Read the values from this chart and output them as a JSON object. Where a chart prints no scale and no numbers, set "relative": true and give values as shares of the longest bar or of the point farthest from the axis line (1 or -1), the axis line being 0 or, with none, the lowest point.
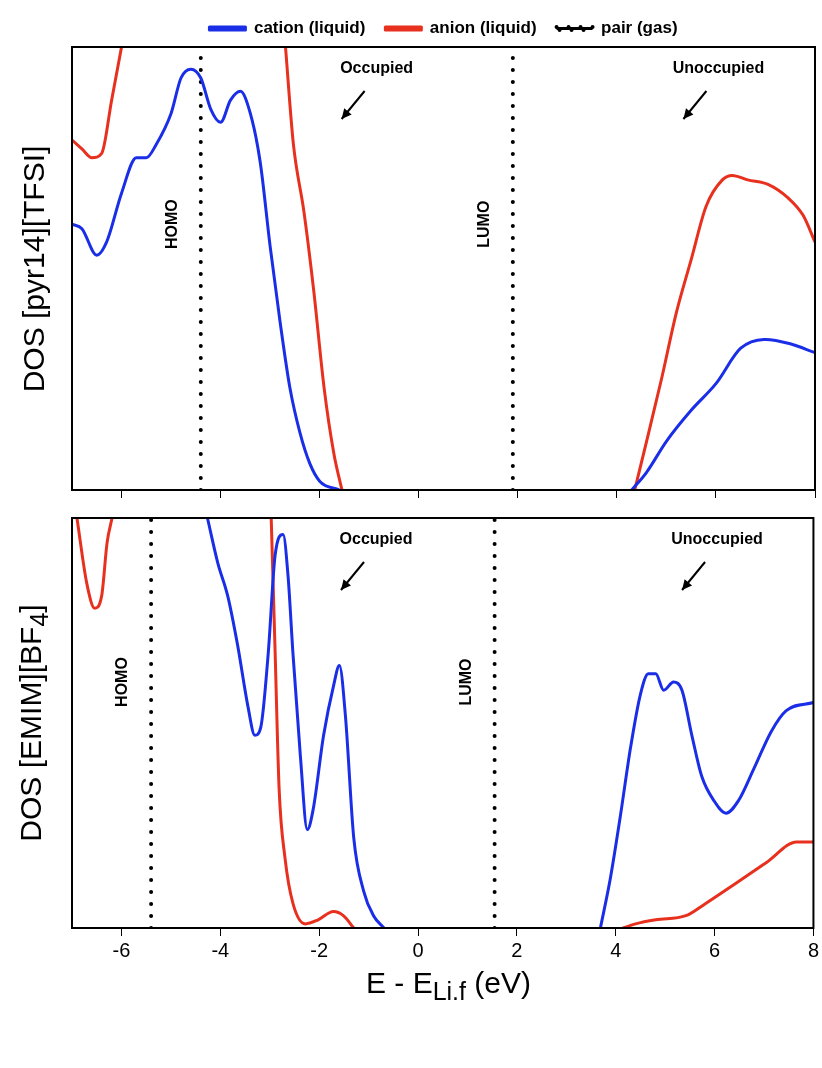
{
  "chart_data": [
    {
      "type": "line",
      "relative": true,
      "ylabel": "DOS [pyr14][TFSI]",
      "xlim": [
        -7,
        8
      ],
      "xticks": [
        -6,
        -4,
        -2,
        0,
        2,
        4,
        6,
        8
      ],
      "tick_labels": false,
      "legend": "top",
      "marker": "none",
      "series": [
        {
          "name": "cation (liquid)",
          "color": "#1a2ee8",
          "x": [
            -7,
            -6.8,
            -6.5,
            -6.3,
            -6,
            -5.7,
            -5.5,
            -5.3,
            -5,
            -4.8,
            -4.6,
            -4.4,
            -4.2,
            -4,
            -3.8,
            -3.6,
            -3.4,
            -3.2,
            -3,
            -2.8,
            -2.6,
            -2.4,
            -2.2,
            -2,
            -1.6,
            null,
            4.3,
            4.6,
            5,
            5.5,
            6,
            6.5,
            7,
            7.5,
            8
          ],
          "values": [
            0.6,
            0.59,
            0.53,
            0.56,
            0.67,
            0.75,
            0.75,
            0.78,
            0.85,
            0.93,
            0.95,
            0.93,
            0.86,
            0.83,
            0.88,
            0.9,
            0.85,
            0.74,
            0.55,
            0.38,
            0.23,
            0.13,
            0.06,
            0.02,
            0,
            null,
            0,
            0.04,
            0.11,
            0.18,
            0.24,
            0.32,
            0.34,
            0.33,
            0.31
          ]
        },
        {
          "name": "anion (liquid)",
          "color": "#e8301e",
          "x": [
            -7,
            -6.8,
            -6.6,
            -6.4,
            -6.2,
            -6,
            null,
            -2.69,
            -2.53,
            -2.32,
            -2.12,
            -1.91,
            -1.71,
            -1.55,
            null,
            4.36,
            4.6,
            4.9,
            5.2,
            5.5,
            5.8,
            6.13,
            6.33,
            6.64,
            7.05,
            7.45,
            7.76,
            8
          ],
          "values": [
            0.79,
            0.77,
            0.75,
            0.76,
            0.88,
            1,
            null,
            1,
            0.78,
            0.63,
            0.45,
            0.23,
            0.08,
            0,
            null,
            0,
            0.11,
            0.25,
            0.4,
            0.52,
            0.64,
            0.7,
            0.71,
            0.7,
            0.69,
            0.66,
            0.62,
            0.56
          ]
        },
        {
          "name": "pair (gas)",
          "color": "#000000",
          "line_style": "dotted",
          "x": [
            -4.4,
            -4.4,
            null,
            1.9,
            1.9
          ],
          "values": [
            0,
            1,
            null,
            0,
            1
          ]
        }
      ],
      "annotations": [
        "HOMO",
        "LUMO",
        "Occupied",
        "Unoccupied"
      ]
    },
    {
      "type": "line",
      "relative": true,
      "ylabel": "DOS [EMIM][BF$_{4}$]",
      "xlabel": "E - E$_{Li.f}$ (eV)",
      "xlim": [
        -7,
        8
      ],
      "xticks": [
        -6,
        -4,
        -2,
        0,
        2,
        4,
        6,
        8
      ],
      "tick_labels": "x",
      "marker": "none",
      "series": [
        {
          "color": "#1a2ee8",
          "x": [
            -4.26,
            -4.05,
            -3.85,
            -3.65,
            -3.44,
            -3.3,
            -3.18,
            -3.03,
            -2.89,
            -2.73,
            -2.63,
            -2.53,
            -2.38,
            -2.24,
            -2.12,
            -1.91,
            -1.71,
            -1.59,
            -1.47,
            -1.3,
            -1.1,
            -0.9,
            -0.69,
            null,
            3.69,
            3.89,
            4.09,
            4.3,
            4.5,
            4.66,
            4.81,
            4.97,
            5.17,
            5.34,
            5.54,
            5.74,
            5.99,
            6.23,
            6.48,
            6.8,
            7.15,
            7.45,
            8
          ],
          "values": [
            1,
            0.89,
            0.81,
            0.69,
            0.54,
            0.47,
            0.49,
            0.67,
            0.91,
            0.96,
            0.86,
            0.67,
            0.42,
            0.24,
            0.29,
            0.47,
            0.59,
            0.64,
            0.52,
            0.22,
            0.09,
            0.03,
            0,
            null,
            0,
            0.12,
            0.27,
            0.44,
            0.57,
            0.62,
            0.62,
            0.58,
            0.6,
            0.58,
            0.47,
            0.37,
            0.31,
            0.28,
            0.31,
            0.39,
            0.48,
            0.53,
            0.55
          ]
        },
        {
          "color": "#e8301e",
          "x": [
            -6.9,
            -6.7,
            -6.54,
            -6.4,
            -6.29,
            -6.19,
            null,
            -2.97,
            -2.89,
            -2.81,
            -2.69,
            -2.53,
            -2.28,
            -2.02,
            -1.71,
            -1.51,
            -1.3,
            null,
            4.15,
            4.4,
            4.81,
            5.42,
            5.82,
            6.44,
            7.05,
            7.66,
            8
          ],
          "values": [
            1,
            0.84,
            0.78,
            0.81,
            0.94,
            1,
            null,
            1,
            0.67,
            0.34,
            0.17,
            0.06,
            0.01,
            0.02,
            0.04,
            0.03,
            0,
            null,
            0,
            0.01,
            0.02,
            0.03,
            0.06,
            0.11,
            0.16,
            0.21,
            0.21
          ]
        },
        {
          "color": "#000000",
          "line_style": "dotted",
          "x": [
            -5.4,
            -5.4,
            null,
            1.55,
            1.55
          ],
          "values": [
            0,
            1,
            null,
            0,
            1
          ]
        }
      ],
      "annotations": [
        "HOMO",
        "LUMO",
        "Occupied",
        "Unoccupied"
      ]
    }
  ]
}
